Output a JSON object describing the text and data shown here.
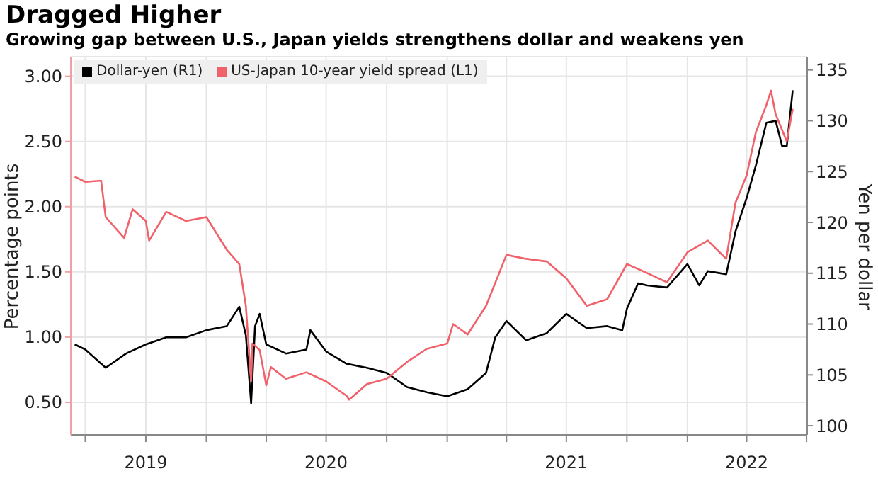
{
  "chart_data": {
    "type": "line",
    "title": "Dragged Higher",
    "subtitle": "Growing gap between U.S., Japan yields strengthens dollar and weakens yen",
    "ylabel": "Percentage points",
    "y2label": "Yen per dollar",
    "xlim": [
      "2019-06-09",
      "2022-07-02"
    ],
    "xticks": [
      {
        "value": "2019-07-01",
        "label": null
      },
      {
        "value": "2019-10-01",
        "label": "2019"
      },
      {
        "value": "2020-01-01",
        "label": null
      },
      {
        "value": "2020-04-01",
        "label": null
      },
      {
        "value": "2020-07-01",
        "label": "2020"
      },
      {
        "value": "2020-10-01",
        "label": null
      },
      {
        "value": "2021-01-01",
        "label": null
      },
      {
        "value": "2021-04-01",
        "label": null
      },
      {
        "value": "2021-07-01",
        "label": "2021"
      },
      {
        "value": "2021-10-01",
        "label": null
      },
      {
        "value": "2022-01-01",
        "label": null
      },
      {
        "value": "2022-04-01",
        "label": "2022"
      },
      {
        "value": "2022-07-01",
        "label": null
      }
    ],
    "ylim": [
      0.25,
      3.15
    ],
    "yticks": [
      {
        "value": 0.5,
        "label": "0.50"
      },
      {
        "value": 1,
        "label": "1.00"
      },
      {
        "value": 1.5,
        "label": "1.50"
      },
      {
        "value": 2,
        "label": "2.00"
      },
      {
        "value": 2.5,
        "label": "2.50"
      },
      {
        "value": 3,
        "label": "3.00"
      }
    ],
    "y2lim": [
      99.1,
      136.3
    ],
    "y2ticks": [
      100,
      105,
      110,
      115,
      120,
      125,
      130,
      135
    ],
    "grid": true,
    "legend": "top left",
    "series": [
      {
        "name": "Dollar-yen (R1)",
        "color": "#000000",
        "axis": "y2",
        "x": [
          "2019-06-15",
          "2019-07-01",
          "2019-08-01",
          "2019-09-01",
          "2019-10-01",
          "2019-11-01",
          "2019-12-01",
          "2020-01-01",
          "2020-02-01",
          "2020-02-20",
          "2020-03-01",
          "2020-03-09",
          "2020-03-15",
          "2020-03-22",
          "2020-04-01",
          "2020-05-01",
          "2020-06-01",
          "2020-06-07",
          "2020-07-01",
          "2020-08-01",
          "2020-09-01",
          "2020-10-01",
          "2020-11-01",
          "2020-12-01",
          "2021-01-01",
          "2021-02-01",
          "2021-03-01",
          "2021-03-15",
          "2021-04-01",
          "2021-05-01",
          "2021-06-01",
          "2021-07-01",
          "2021-08-01",
          "2021-09-01",
          "2021-09-24",
          "2021-10-01",
          "2021-10-18",
          "2021-11-01",
          "2021-12-01",
          "2022-01-01",
          "2022-01-19",
          "2022-02-01",
          "2022-03-01",
          "2022-03-15",
          "2022-04-01",
          "2022-04-15",
          "2022-05-01",
          "2022-05-15",
          "2022-05-25",
          "2022-06-01",
          "2022-06-10"
        ],
        "values": [
          108.0,
          107.5,
          105.7,
          107.1,
          108.0,
          108.7,
          108.7,
          109.4,
          109.8,
          111.7,
          108.9,
          102.2,
          109.8,
          111.0,
          108.0,
          107.1,
          107.5,
          109.4,
          107.3,
          106.1,
          105.7,
          105.2,
          103.8,
          103.3,
          102.9,
          103.6,
          105.2,
          108.7,
          110.3,
          108.4,
          109.1,
          111.0,
          109.6,
          109.8,
          109.4,
          111.5,
          114.0,
          113.8,
          113.6,
          115.9,
          113.8,
          115.2,
          114.9,
          119.1,
          122.4,
          125.6,
          129.8,
          130.0,
          127.5,
          127.5,
          133.0
        ]
      },
      {
        "name": "US-Japan 10-year yield spread (L1)",
        "color": "#f0616a",
        "x": [
          "2019-06-15",
          "2019-07-01",
          "2019-07-25",
          "2019-08-01",
          "2019-08-29",
          "2019-09-11",
          "2019-10-01",
          "2019-10-06",
          "2019-11-01",
          "2019-12-01",
          "2020-01-01",
          "2020-02-01",
          "2020-02-20",
          "2020-03-01",
          "2020-03-09",
          "2020-03-11",
          "2020-03-22",
          "2020-04-01",
          "2020-04-08",
          "2020-05-01",
          "2020-06-01",
          "2020-07-01",
          "2020-07-15",
          "2020-08-01",
          "2020-08-05",
          "2020-09-01",
          "2020-10-01",
          "2020-11-01",
          "2020-12-01",
          "2021-01-01",
          "2021-01-10",
          "2021-02-01",
          "2021-03-01",
          "2021-04-01",
          "2021-05-01",
          "2021-06-01",
          "2021-07-01",
          "2021-08-01",
          "2021-09-01",
          "2021-10-01",
          "2021-11-01",
          "2021-12-01",
          "2022-01-01",
          "2022-02-01",
          "2022-03-01",
          "2022-03-15",
          "2022-04-01",
          "2022-04-15",
          "2022-05-01",
          "2022-05-08",
          "2022-05-15",
          "2022-06-01",
          "2022-06-10"
        ],
        "values": [
          2.23,
          2.19,
          2.2,
          1.92,
          1.76,
          1.98,
          1.89,
          1.74,
          1.96,
          1.89,
          1.92,
          1.67,
          1.56,
          1.24,
          0.66,
          0.95,
          0.9,
          0.63,
          0.77,
          0.68,
          0.73,
          0.66,
          0.61,
          0.55,
          0.52,
          0.64,
          0.68,
          0.81,
          0.91,
          0.95,
          1.1,
          1.02,
          1.24,
          1.63,
          1.6,
          1.58,
          1.45,
          1.24,
          1.29,
          1.56,
          1.49,
          1.42,
          1.65,
          1.74,
          1.6,
          2.03,
          2.24,
          2.57,
          2.78,
          2.89,
          2.71,
          2.5,
          2.75
        ]
      }
    ]
  }
}
